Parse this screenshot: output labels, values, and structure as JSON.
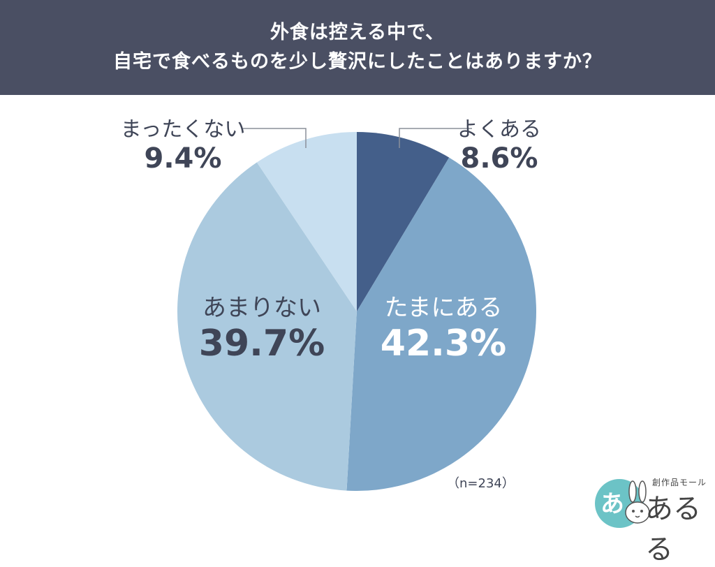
{
  "header": {
    "title_line1": "外食は控える中で、",
    "title_line2": "自宅で食べるものを少し贅沢にしたことはありますか？"
  },
  "chart_data": {
    "type": "pie",
    "title": "外食は控える中で、自宅で食べるものを少し贅沢にしたことはありますか？",
    "slices": [
      {
        "label": "よくある",
        "value": 8.6,
        "display": "8.6%",
        "color": "#445f8a"
      },
      {
        "label": "たまにある",
        "value": 42.3,
        "display": "42.3%",
        "color": "#7ea7c9"
      },
      {
        "label": "あまりない",
        "value": 39.7,
        "display": "39.7%",
        "color": "#abcadf"
      },
      {
        "label": "まったくない",
        "value": 9.4,
        "display": "9.4%",
        "color": "#c8dff0"
      }
    ],
    "sample_note": "（n=234）"
  },
  "logo": {
    "small_text": "創作品モール",
    "main_text": "あるる",
    "badge_text": "あ"
  },
  "colors": {
    "header_bg": "#4a4f63",
    "text_dark": "#3f4557",
    "leader_line": "#8a8f99",
    "logo_teal": "#6cc3c6"
  }
}
